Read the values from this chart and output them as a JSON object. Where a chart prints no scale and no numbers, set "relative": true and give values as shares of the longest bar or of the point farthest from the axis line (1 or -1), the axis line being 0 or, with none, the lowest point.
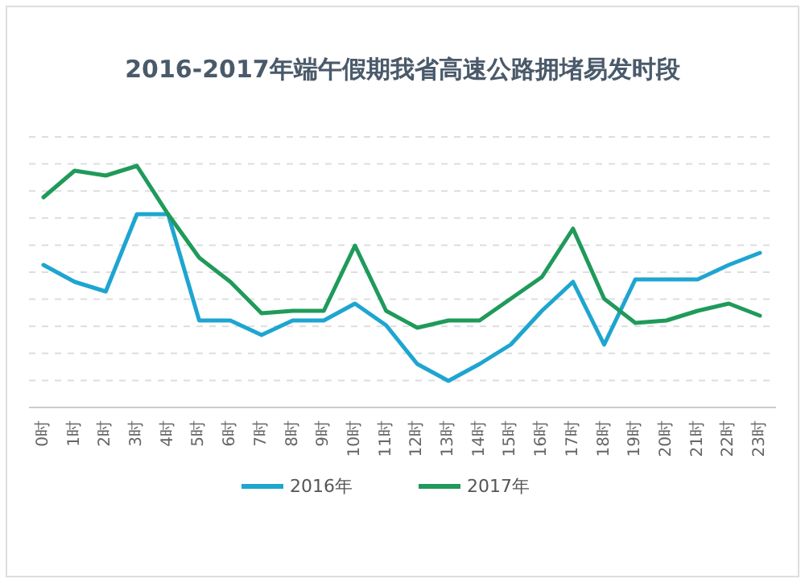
{
  "chart_data": {
    "type": "line",
    "title": "2016-2017年端午假期我省高速公路拥堵易发时段",
    "relative": true,
    "grid": "y",
    "legend": "bottom",
    "marker": "none",
    "categories": [
      "0时",
      "1时",
      "2时",
      "3时",
      "4时",
      "5时",
      "6时",
      "7时",
      "8时",
      "9时",
      "10时",
      "11时",
      "12时",
      "13时",
      "14时",
      "15时",
      "16时",
      "17时",
      "18时",
      "19时",
      "20时",
      "21时",
      "22时",
      "23时"
    ],
    "series": [
      {
        "name": "2016年",
        "color": "#1ea5d0",
        "values": [
          0.59,
          0.52,
          0.48,
          0.8,
          0.8,
          0.36,
          0.36,
          0.3,
          0.36,
          0.36,
          0.43,
          0.34,
          0.18,
          0.11,
          0.18,
          0.26,
          0.4,
          0.52,
          0.26,
          0.53,
          0.53,
          0.53,
          0.59,
          0.64
        ]
      },
      {
        "name": "2017年",
        "color": "#1f9a5a",
        "values": [
          0.87,
          0.98,
          0.96,
          1,
          0.8,
          0.62,
          0.52,
          0.39,
          0.4,
          0.4,
          0.67,
          0.4,
          0.33,
          0.36,
          0.36,
          0.45,
          0.54,
          0.74,
          0.45,
          0.35,
          0.36,
          0.4,
          0.43,
          0.38
        ]
      }
    ]
  }
}
